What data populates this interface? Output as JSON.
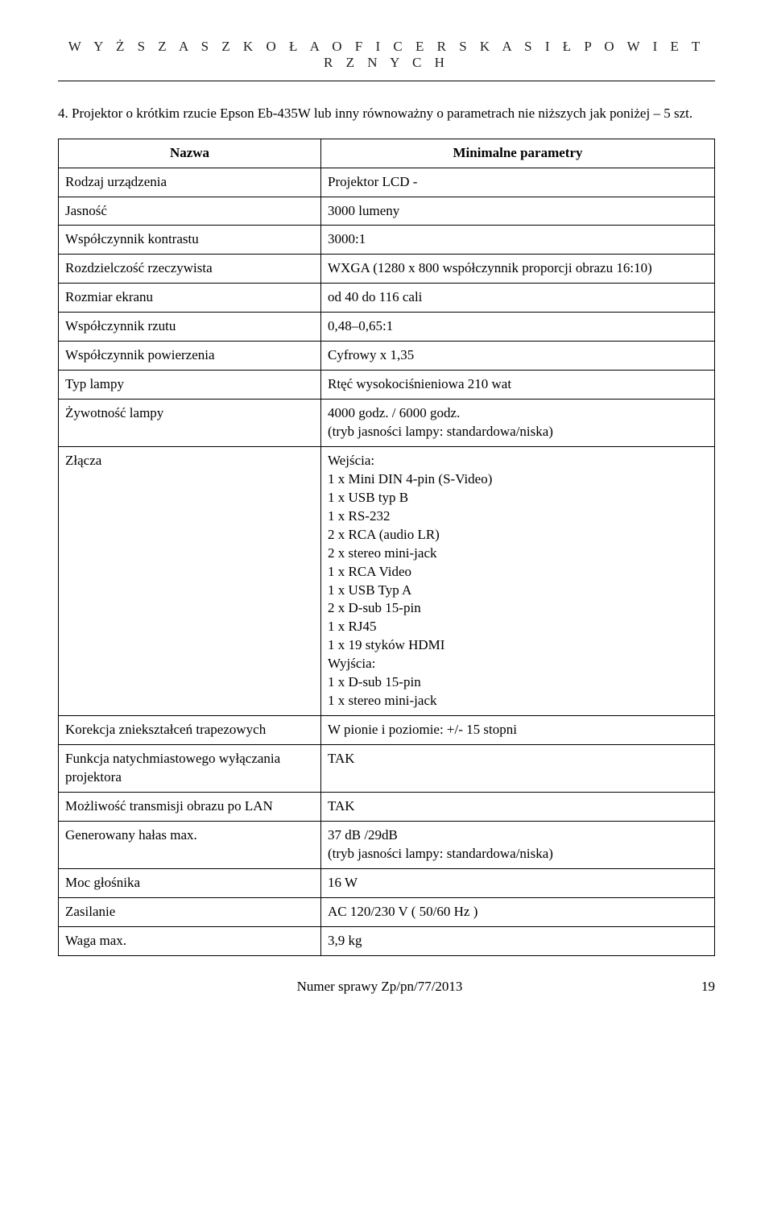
{
  "letterhead": "W Y Ż S Z A   S Z K O Ł A   O F I C E R S K A   S I Ł   P O W I E T R Z N Y C H",
  "intro": {
    "number": "4.",
    "text": "Projektor o krótkim rzucie Epson Eb-435W lub inny równoważny o parametrach nie niższych jak poniżej – 5 szt."
  },
  "table": {
    "headers": {
      "name": "Nazwa",
      "params": "Minimalne parametry"
    },
    "rows": [
      {
        "label": "Rodzaj urządzenia",
        "value": "Projektor LCD -"
      },
      {
        "label": "Jasność",
        "value": "3000 lumeny"
      },
      {
        "label": "Współczynnik kontrastu",
        "value": "3000:1"
      },
      {
        "label": "Rozdzielczość rzeczywista",
        "value": "WXGA (1280 x 800 współczynnik proporcji obrazu 16:10)"
      },
      {
        "label": "Rozmiar ekranu",
        "value": "od 40 do 116 cali"
      },
      {
        "label": "Współczynnik rzutu",
        "value": "0,48–0,65:1"
      },
      {
        "label": "Współczynnik powierzenia",
        "value": "Cyfrowy x 1,35"
      },
      {
        "label": "Typ lampy",
        "value": "Rtęć wysokociśnieniowa 210 wat"
      },
      {
        "label": "Żywotność lampy",
        "value": "4000 godz. / 6000 godz.\n(tryb jasności lampy: standardowa/niska)"
      },
      {
        "label": "Złącza",
        "value": "Wejścia:\n1 x Mini DIN 4-pin (S-Video)\n1 x USB typ B\n1 x RS-232\n2 x RCA (audio LR)\n2 x stereo mini-jack\n1 x RCA Video\n1 x USB Typ A\n2 x D-sub 15-pin\n1 x RJ45\n1 x 19 styków HDMI\nWyjścia:\n1 x D-sub 15-pin\n1 x stereo mini-jack"
      },
      {
        "label": "Korekcja zniekształceń trapezowych",
        "value": "W pionie i poziomie: +/- 15 stopni"
      },
      {
        "label": "Funkcja natychmiastowego wyłączania projektora",
        "value": "TAK"
      },
      {
        "label": "Możliwość transmisji obrazu po LAN",
        "value": "TAK"
      },
      {
        "label": "Generowany hałas max.",
        "value": "37 dB /29dB\n(tryb jasności lampy: standardowa/niska)"
      },
      {
        "label": "Moc głośnika",
        "value": "16 W"
      },
      {
        "label": "Zasilanie",
        "value": "AC 120/230 V ( 50/60 Hz )"
      },
      {
        "label": "Waga max.",
        "value": "3,9 kg"
      }
    ]
  },
  "footer": {
    "case_label": "Numer sprawy  Zp/pn/77/2013",
    "page": "19"
  }
}
